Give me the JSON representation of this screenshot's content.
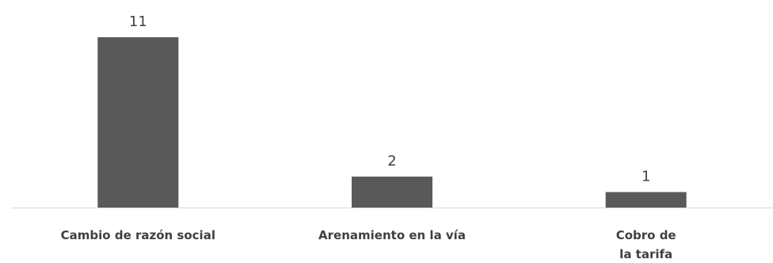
{
  "chart_data": {
    "type": "bar",
    "categories": [
      [
        "Cambio de razón social"
      ],
      [
        "Arenamiento en la vía"
      ],
      [
        "Cobro de",
        "la tarifa"
      ]
    ],
    "values": [
      11,
      2,
      1
    ],
    "data_labels": [
      "11",
      "2",
      "1"
    ],
    "bar_color": "#595959",
    "axis_color": "#d9d9d9",
    "title": "",
    "xlabel": "",
    "ylabel": "",
    "ylim": [
      0,
      11
    ],
    "grid": false,
    "legend": "none"
  }
}
